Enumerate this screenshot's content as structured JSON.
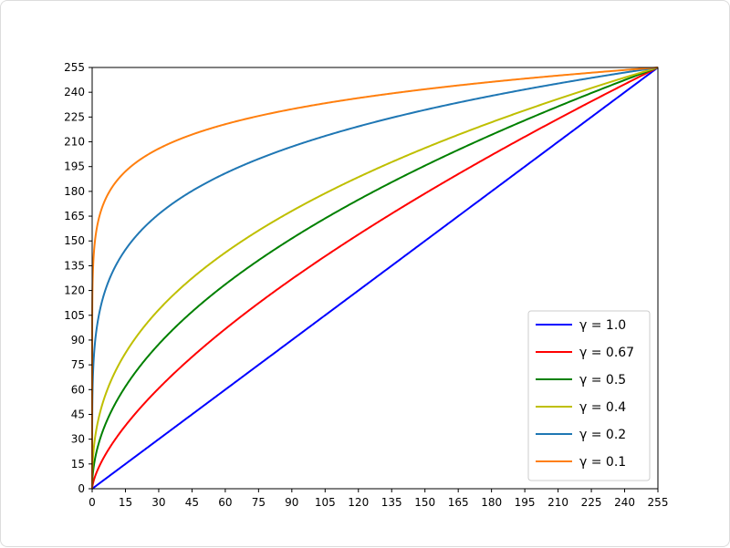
{
  "chart_data": {
    "type": "line",
    "title": "",
    "xlabel": "",
    "ylabel": "",
    "xlim": [
      0,
      255
    ],
    "ylim": [
      0,
      255
    ],
    "x_ticks": [
      0,
      15,
      30,
      45,
      60,
      75,
      90,
      105,
      120,
      135,
      150,
      165,
      180,
      195,
      210,
      225,
      240,
      255
    ],
    "y_ticks": [
      0,
      15,
      30,
      45,
      60,
      75,
      90,
      105,
      120,
      135,
      150,
      165,
      180,
      195,
      210,
      225,
      240,
      255
    ],
    "grid": false,
    "legend_position": "bottom-right",
    "function": "y = 255 * (x / 255) ^ gamma",
    "series": [
      {
        "name": "γ = 1.0",
        "gamma": 1.0,
        "color": "#0000ff"
      },
      {
        "name": "γ = 0.67",
        "gamma": 0.67,
        "color": "#ff0000"
      },
      {
        "name": "γ = 0.5",
        "gamma": 0.5,
        "color": "#008000"
      },
      {
        "name": "γ = 0.4",
        "gamma": 0.4,
        "color": "#bfbf00"
      },
      {
        "name": "γ = 0.2",
        "gamma": 0.2,
        "color": "#1f77b4"
      },
      {
        "name": "γ = 0.1",
        "gamma": 0.1,
        "color": "#ff7f0e"
      }
    ]
  }
}
